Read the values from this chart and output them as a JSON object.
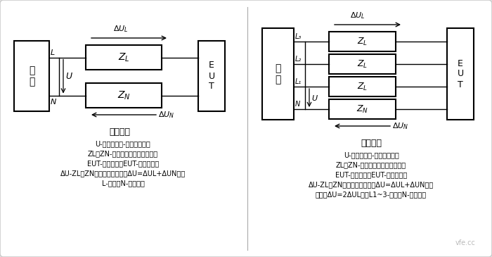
{
  "bg_color": "#efefef",
  "panel_bg": "#ffffff",
  "border_color": "#cccccc",
  "text_color": "#000000",
  "blue_color": "#1010cc",
  "title_left": "单相设备",
  "title_right": "三相设备",
  "legend_left": [
    "U-电源的相线-中性线电压；",
    "ZL，ZN-导线及电流探头的阻抗；",
    "EUT-受试设备；EUT-受试设备；",
    "ΔU-ZL和ZN上的电压降之和（ΔU=ΔUL+ΔUN）；",
    "L-相线；N-中性线。"
  ],
  "legend_right": [
    "U-电源的相线-中性线电压；",
    "ZL，ZN-导线及电流探头的阻抗；",
    "EUT-受试设备；EUT-受试设备；",
    "ΔU-ZL和ZN上的电压降之和（ΔU=ΔUL+ΔUN）；",
    "相间（ΔU=2ΔUL）；L1~3-相线；N-中性线。"
  ]
}
